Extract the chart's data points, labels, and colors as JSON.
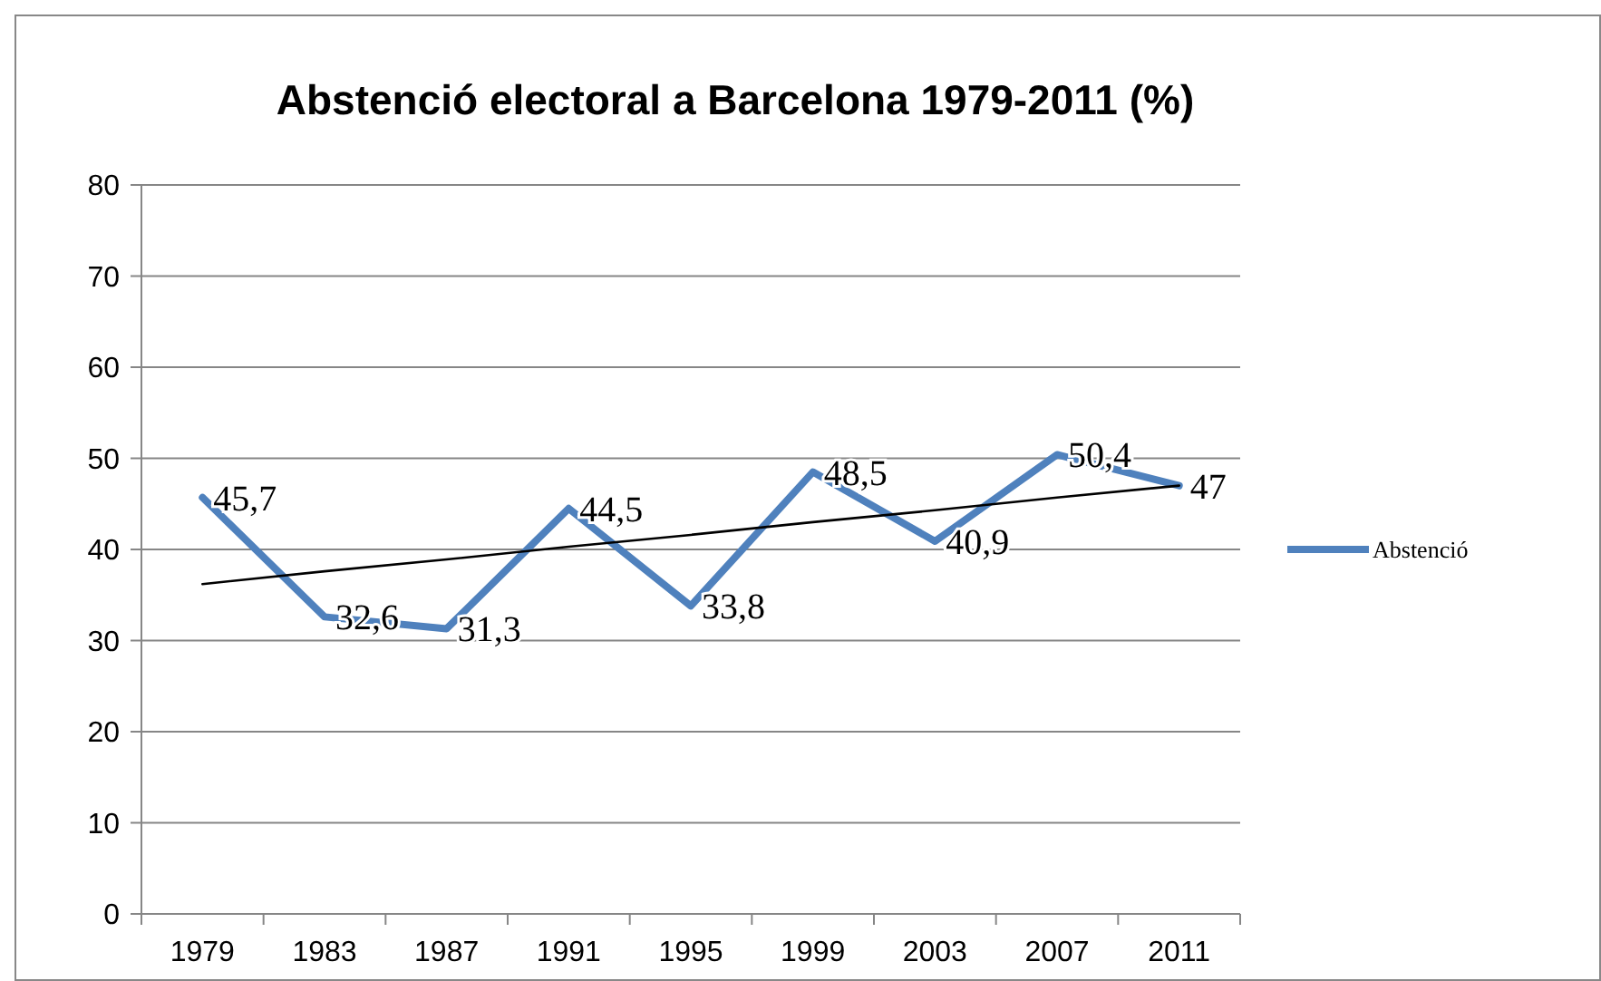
{
  "chart_data": {
    "type": "line",
    "title": "Abstenció electoral a Barcelona 1979-2011 (%)",
    "categories": [
      "1979",
      "1983",
      "1987",
      "1991",
      "1995",
      "1999",
      "2003",
      "2007",
      "2011"
    ],
    "ylim": [
      0,
      80
    ],
    "yticks": [
      0,
      10,
      20,
      30,
      40,
      50,
      60,
      70,
      80
    ],
    "grid": "y",
    "legend": "right",
    "marker": "none",
    "series": [
      {
        "name": "Abstenció",
        "color": "#4f81bd",
        "values": [
          45.7,
          32.6,
          31.3,
          44.5,
          33.8,
          48.5,
          40.9,
          50.4,
          47
        ],
        "value_labels": [
          "45,7",
          "32,6",
          "31,3",
          "44,5",
          "33,8",
          "48,5",
          "40,9",
          "50,4",
          "47"
        ]
      },
      {
        "type": "line",
        "color": "#000000",
        "values": [
          36.2,
          37.6,
          38.9,
          40.3,
          41.6,
          43,
          44.3,
          45.7,
          47
        ]
      }
    ]
  }
}
